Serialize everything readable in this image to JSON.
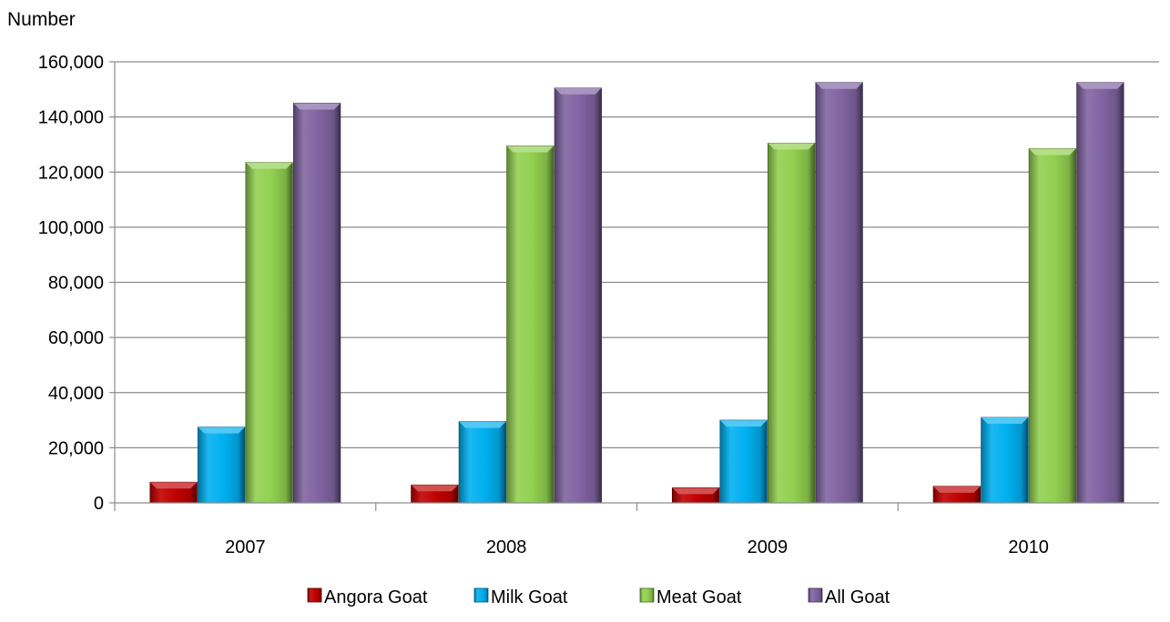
{
  "chart_data": {
    "type": "bar",
    "ylabel": "Number",
    "xlabel": "",
    "ylim": [
      0,
      160000
    ],
    "yticks": [
      0,
      20000,
      40000,
      60000,
      80000,
      100000,
      120000,
      140000,
      160000
    ],
    "ytick_labels": [
      "0",
      "20,000",
      "40,000",
      "60,000",
      "80,000",
      "100,000",
      "120,000",
      "140,000",
      "160,000"
    ],
    "categories": [
      "2007",
      "2008",
      "2009",
      "2010"
    ],
    "grid": true,
    "legend_position": "bottom",
    "series": [
      {
        "name": "Angora Goat",
        "color": "#c00000",
        "values": [
          7500,
          6500,
          5500,
          6000
        ]
      },
      {
        "name": "Milk Goat",
        "color": "#00b0f0",
        "values": [
          27500,
          29500,
          30000,
          31000
        ]
      },
      {
        "name": "Meat Goat",
        "color": "#92d050",
        "values": [
          123500,
          129500,
          130500,
          128500
        ]
      },
      {
        "name": "All Goat",
        "color": "#8064a2",
        "values": [
          145000,
          150500,
          152500,
          152500
        ]
      }
    ]
  }
}
